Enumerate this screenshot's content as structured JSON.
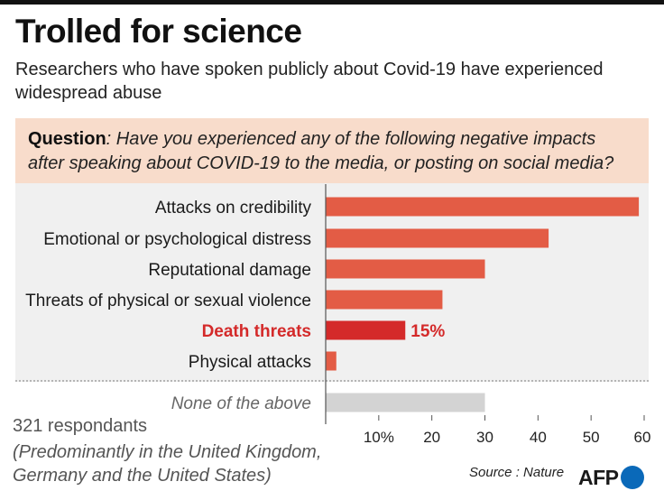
{
  "header": {
    "title": "Trolled for science",
    "subtitle": "Researchers who have spoken publicly about Covid-19 have experienced widespread abuse"
  },
  "question": {
    "label": "Question",
    "text": ": Have you experienced any of the following negative impacts after speaking about COVID-19 to the media, or posting on social media?"
  },
  "footer": {
    "respondents": "321 respondants",
    "note": "(Predominantly in the United Kingdom, Germany and the United States)",
    "source": "Source : Nature",
    "logo_text": "AFP"
  },
  "colors": {
    "bar": "#e35c45",
    "highlight": "#d42a2a",
    "none_bar": "#d3d3d3",
    "logo_dot": "#0a69b9"
  },
  "chart_data": {
    "type": "bar",
    "orientation": "horizontal",
    "categories": [
      "Attacks on credibility",
      "Emotional or psychological distress",
      "Reputational damage",
      "Threats of physical or sexual violence",
      "Death threats",
      "Physical attacks",
      "None of the above"
    ],
    "values": [
      59,
      42,
      30,
      22,
      15,
      2,
      30
    ],
    "highlight": {
      "category": "Death threats",
      "label": "15%"
    },
    "xlim": [
      0,
      60
    ],
    "xticks": [
      10,
      20,
      30,
      40,
      50,
      60
    ],
    "xtick_labels": [
      "10%",
      "20",
      "30",
      "40",
      "50",
      "60"
    ],
    "grid": false,
    "title": "",
    "xlabel": "",
    "ylabel": ""
  }
}
